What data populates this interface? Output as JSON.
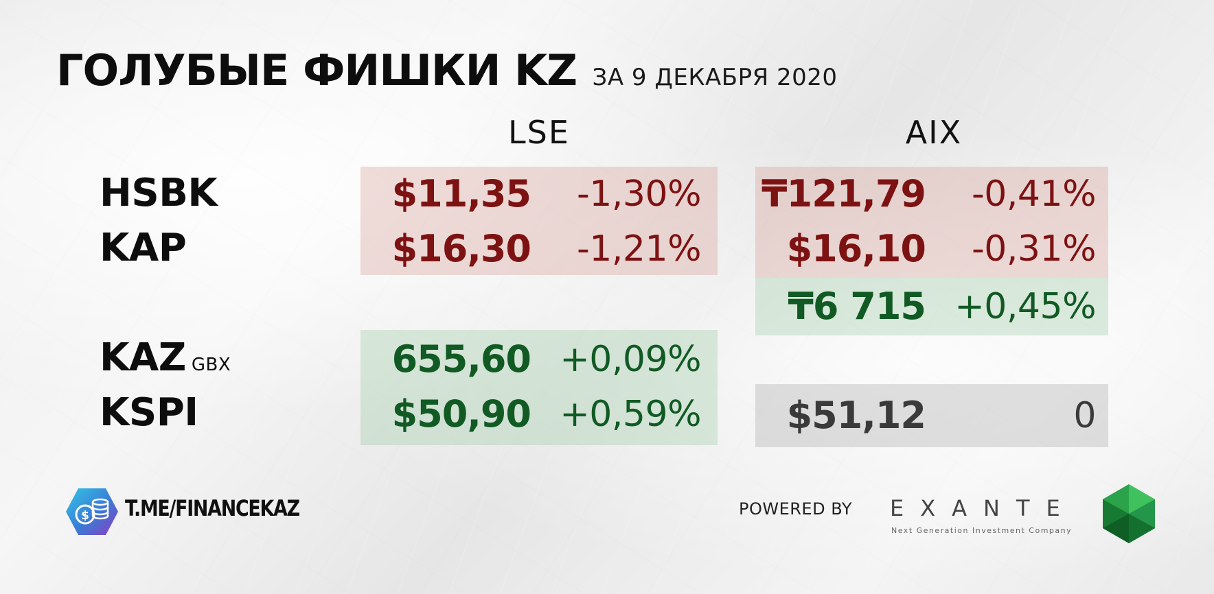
{
  "title": "ГОЛУБЫЕ ФИШКИ KZ",
  "date": "ЗА 9 ДЕКАБРЯ 2020",
  "exchanges": {
    "lse": "LSE",
    "aix": "AIX"
  },
  "tickers": {
    "hsbk": "HSBK",
    "kap": "KAP",
    "kaz": "KAZ",
    "kaz_unit": "GBX",
    "kspi": "KSPI"
  },
  "lse": {
    "hsbk": {
      "price": "$11,35",
      "change": "-1,30%"
    },
    "kap": {
      "price": "$16,30",
      "change": "-1,21%"
    },
    "kaz": {
      "price": "655,60",
      "change": "+0,09%"
    },
    "kspi": {
      "price": "$50,90",
      "change": "+0,59%"
    }
  },
  "aix": {
    "hsbk": {
      "price": "₸121,79",
      "change": "-0,41%"
    },
    "kap": {
      "price": "$16,10",
      "change": "-0,31%"
    },
    "extra": {
      "price": "₸6 715",
      "change": "+0,45%"
    },
    "kspi": {
      "price": "$51,12",
      "change": "0"
    }
  },
  "footer": {
    "channel": "T.ME/FINANCEKAZ",
    "powered_by": "POWERED BY",
    "partner": "EXANTE",
    "partner_tagline": "Next Generation Investment Company"
  },
  "colors": {
    "negative": "#7d1212",
    "positive": "#115a24",
    "neutral": "#3a3a3a",
    "negative_bg": "#e8cfca",
    "positive_bg": "#d3e8d7",
    "neutral_bg": "#d9d9d9"
  },
  "icons": {
    "channel_logo": "coin-stack-hexagon-icon",
    "partner_logo": "green-gem-icon"
  }
}
